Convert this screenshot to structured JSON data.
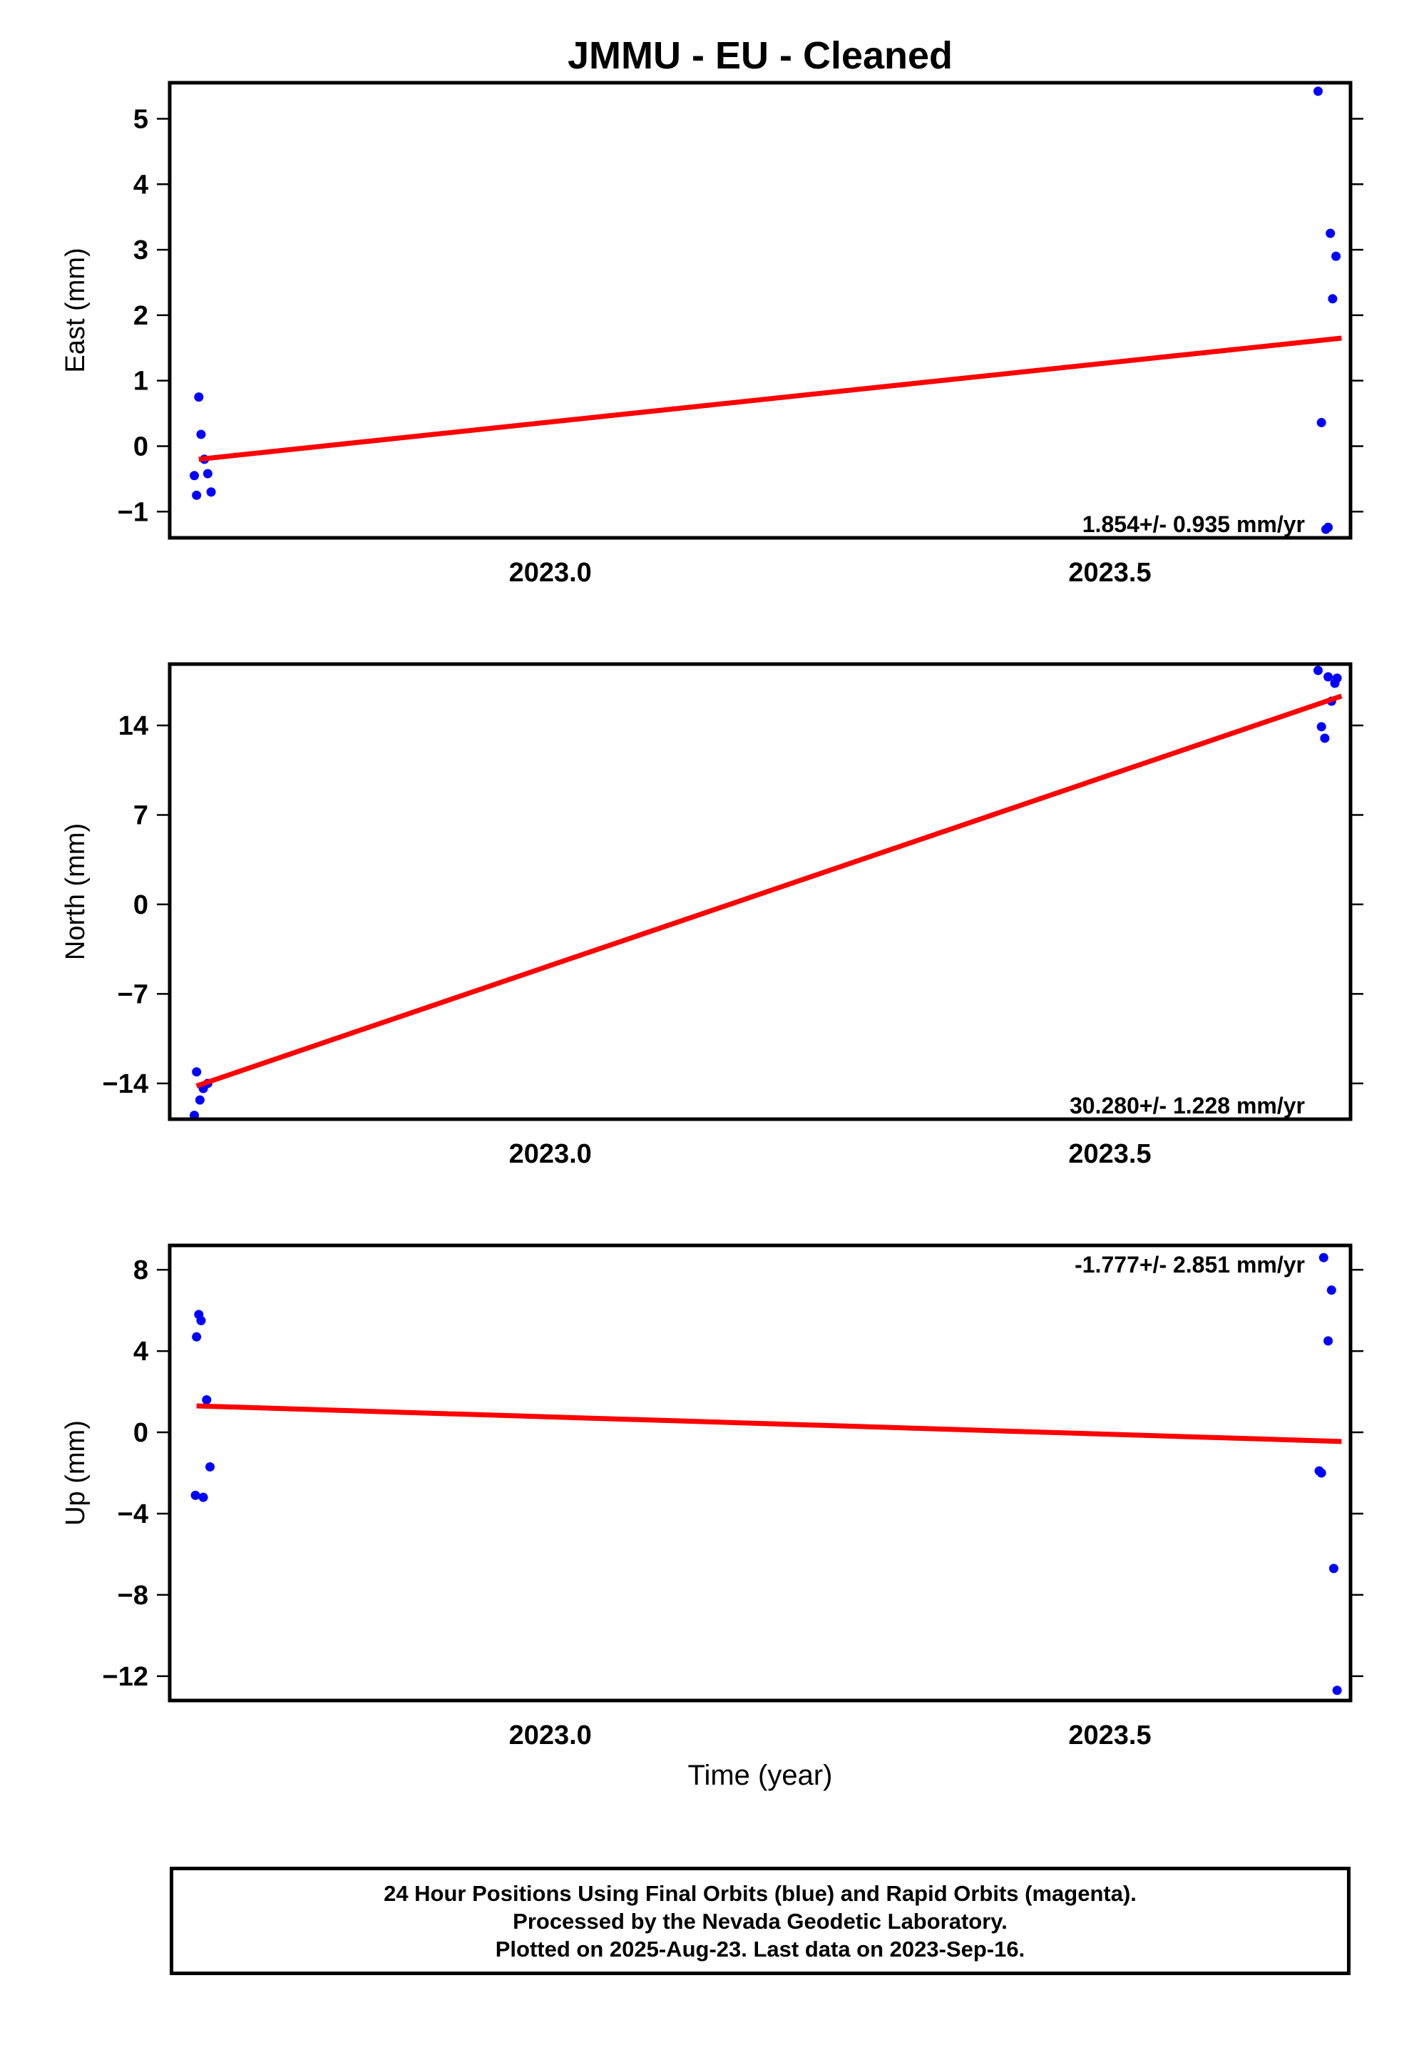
{
  "chart_data": [
    {
      "type": "scatter",
      "title": "JMMU  - EU - Cleaned",
      "ylabel": "East (mm)",
      "xlabel": "",
      "xlim": [
        2022.66,
        2023.715
      ],
      "ylim": [
        -1.4,
        5.55
      ],
      "xticks": [
        2023.0,
        2023.5
      ],
      "xtick_labels": [
        "2023.0",
        "2023.5"
      ],
      "yticks": [
        -1,
        0,
        1,
        2,
        3,
        4,
        5
      ],
      "ytick_labels": [
        "−1",
        "0",
        "1",
        "2",
        "3",
        "4",
        "5"
      ],
      "rate_label": "1.854+/- 0.935 mm/yr",
      "series": [
        {
          "color": "#0000ff",
          "points": [
            [
              2022.682,
              -0.45
            ],
            [
              2022.684,
              -0.75
            ],
            [
              2022.686,
              0.75
            ],
            [
              2022.688,
              0.18
            ],
            [
              2022.691,
              -0.2
            ],
            [
              2022.694,
              -0.42
            ],
            [
              2022.697,
              -0.7
            ],
            [
              2023.686,
              5.42
            ],
            [
              2023.689,
              0.36
            ],
            [
              2023.693,
              -1.27
            ],
            [
              2023.695,
              -1.24
            ],
            [
              2023.697,
              3.25
            ],
            [
              2023.699,
              2.25
            ],
            [
              2023.702,
              2.9
            ]
          ]
        }
      ],
      "trend": {
        "color": "#ff0000",
        "x": [
          2022.686,
          2023.707
        ],
        "y": [
          -0.2,
          1.65
        ]
      }
    },
    {
      "type": "scatter",
      "ylabel": "North (mm)",
      "xlabel": "",
      "xlim": [
        2022.66,
        2023.715
      ],
      "ylim": [
        -16.8,
        18.8
      ],
      "xticks": [
        2023.0,
        2023.5
      ],
      "xtick_labels": [
        "2023.0",
        "2023.5"
      ],
      "yticks": [
        -14,
        -7,
        0,
        7,
        14
      ],
      "ytick_labels": [
        "−14",
        "−7",
        "0",
        "7",
        "14"
      ],
      "rate_label": "30.280+/- 1.228 mm/yr",
      "series": [
        {
          "color": "#0000ff",
          "points": [
            [
              2022.682,
              -16.5
            ],
            [
              2022.684,
              -13.1
            ],
            [
              2022.687,
              -15.3
            ],
            [
              2022.69,
              -14.4
            ],
            [
              2022.694,
              -14.0
            ],
            [
              2023.686,
              18.3
            ],
            [
              2023.689,
              13.9
            ],
            [
              2023.692,
              13.0
            ],
            [
              2023.695,
              17.8
            ],
            [
              2023.698,
              15.9
            ],
            [
              2023.701,
              17.3
            ],
            [
              2023.703,
              17.7
            ]
          ]
        }
      ],
      "trend": {
        "color": "#ff0000",
        "x": [
          2022.684,
          2023.707
        ],
        "y": [
          -14.2,
          16.3
        ]
      }
    },
    {
      "type": "scatter",
      "ylabel": "Up (mm)",
      "xlabel": "Time (year)",
      "xlim": [
        2022.66,
        2023.715
      ],
      "ylim": [
        -13.2,
        9.2
      ],
      "xticks": [
        2023.0,
        2023.5
      ],
      "xtick_labels": [
        "2023.0",
        "2023.5"
      ],
      "yticks": [
        -12,
        -8,
        -4,
        0,
        4,
        8
      ],
      "ytick_labels": [
        "−12",
        "−8",
        "−4",
        "0",
        "4",
        "8"
      ],
      "rate_label": "-1.777+/- 2.851 mm/yr",
      "series": [
        {
          "color": "#0000ff",
          "points": [
            [
              2022.683,
              -3.1
            ],
            [
              2022.684,
              4.7
            ],
            [
              2022.686,
              5.8
            ],
            [
              2022.688,
              5.5
            ],
            [
              2022.69,
              -3.2
            ],
            [
              2022.693,
              1.6
            ],
            [
              2022.696,
              -1.7
            ],
            [
              2023.687,
              -1.9
            ],
            [
              2023.689,
              -2.0
            ],
            [
              2023.691,
              8.6
            ],
            [
              2023.695,
              4.5
            ],
            [
              2023.698,
              7.0
            ],
            [
              2023.7,
              -6.7
            ],
            [
              2023.703,
              -12.7
            ]
          ]
        }
      ],
      "trend": {
        "color": "#ff0000",
        "x": [
          2022.684,
          2023.707
        ],
        "y": [
          1.3,
          -0.45
        ]
      }
    }
  ],
  "note": {
    "line1": "24 Hour Positions Using Final Orbits (blue) and Rapid Orbits (magenta).",
    "line2": "Processed by the Nevada Geodetic Laboratory.",
    "line3": "Plotted on 2025-Aug-23. Last data on 2023-Sep-16."
  }
}
